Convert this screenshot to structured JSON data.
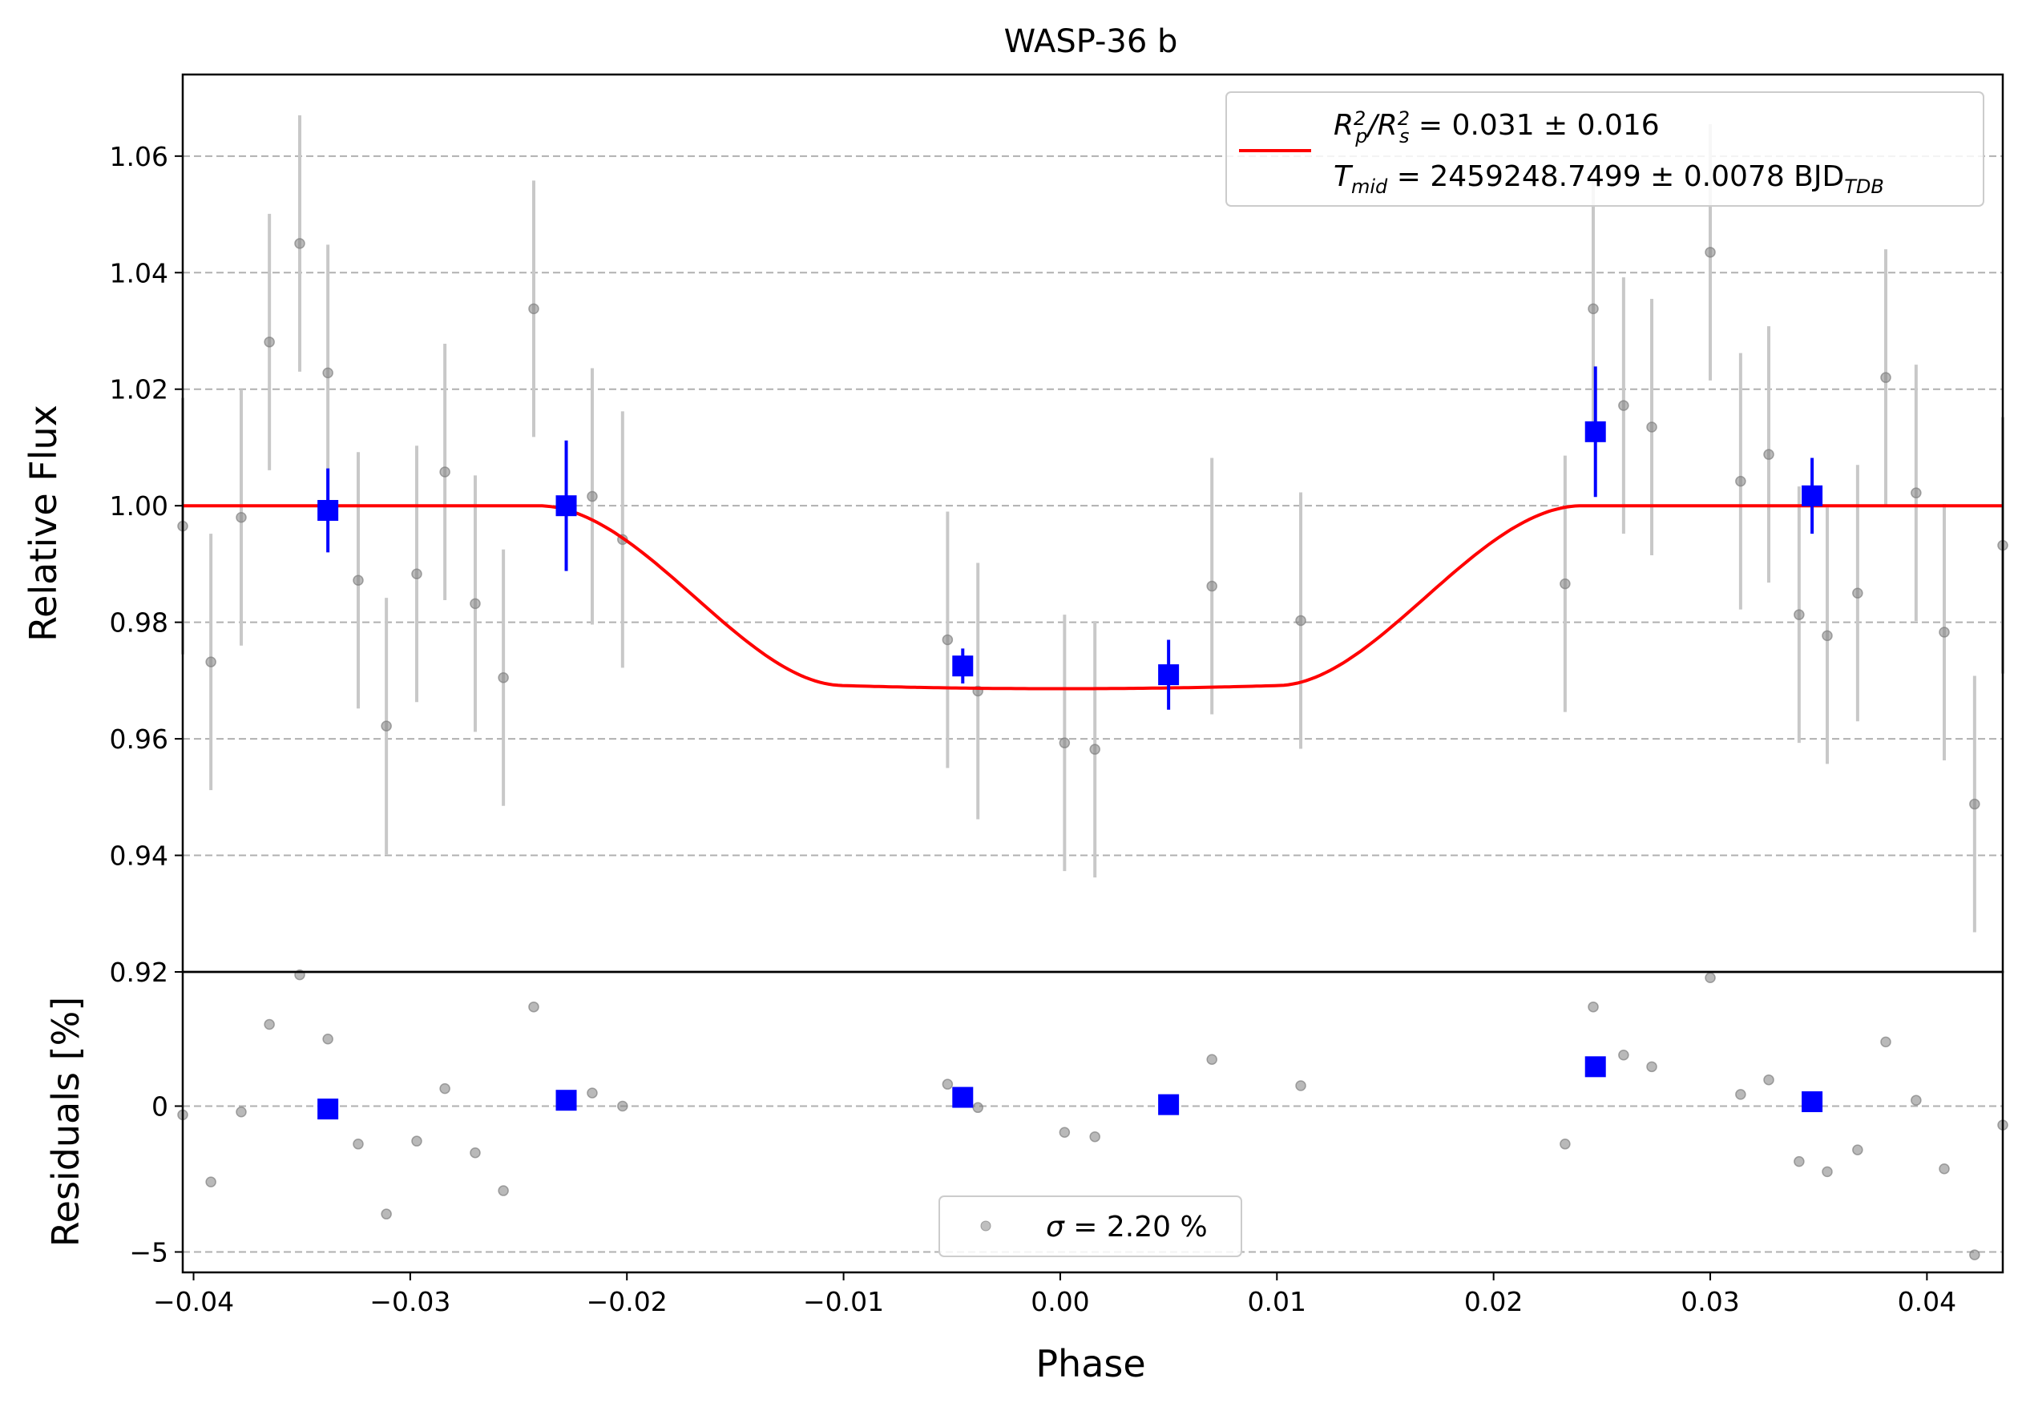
{
  "chart_data": [
    {
      "type": "scatter",
      "title": "WASP-36 b",
      "xlabel": "",
      "ylabel": "Relative Flux",
      "xlim": [
        -0.0405,
        0.0435
      ],
      "ylim": [
        0.92,
        1.074
      ],
      "yticks": [
        0.92,
        0.94,
        0.96,
        0.98,
        1.0,
        1.02,
        1.04,
        1.06
      ],
      "ytick_labels": [
        "0.92",
        "0.94",
        "0.96",
        "0.98",
        "1.00",
        "1.02",
        "1.04",
        "1.06"
      ],
      "grid": "horizontal dashed",
      "legend_position": "top-right",
      "legend": {
        "rp_lhs": "R",
        "rp_sup": "2",
        "rp_sub1": "p",
        "rp_slash": "/R",
        "rp_sub2": "s",
        "rp_rhs": " = 0.031 ± 0.016",
        "tmid_lhs": "T",
        "tmid_sub": "mid",
        "tmid_rhs": " = 2459248.7499 ± 0.0078 BJD",
        "tmid_unit_sub": "TDB"
      },
      "series": [
        {
          "style": "grey points with error bars",
          "color": "#808080",
          "points": [
            {
              "x": -0.0405,
              "y": 0.9965,
              "err": 0.022
            },
            {
              "x": -0.0392,
              "y": 0.9732,
              "err": 0.022
            },
            {
              "x": -0.0378,
              "y": 0.998,
              "err": 0.022
            },
            {
              "x": -0.0365,
              "y": 1.0281,
              "err": 0.022
            },
            {
              "x": -0.0351,
              "y": 1.045,
              "err": 0.022
            },
            {
              "x": -0.0338,
              "y": 1.0228,
              "err": 0.022
            },
            {
              "x": -0.0324,
              "y": 0.9872,
              "err": 0.022
            },
            {
              "x": -0.0311,
              "y": 0.9622,
              "err": 0.022
            },
            {
              "x": -0.0297,
              "y": 0.9883,
              "err": 0.022
            },
            {
              "x": -0.0284,
              "y": 1.0058,
              "err": 0.022
            },
            {
              "x": -0.027,
              "y": 0.9832,
              "err": 0.022
            },
            {
              "x": -0.0257,
              "y": 0.9705,
              "err": 0.022
            },
            {
              "x": -0.0243,
              "y": 1.0338,
              "err": 0.022
            },
            {
              "x": -0.0216,
              "y": 1.0016,
              "err": 0.022
            },
            {
              "x": -0.0202,
              "y": 0.9942,
              "err": 0.022
            },
            {
              "x": -0.0052,
              "y": 0.977,
              "err": 0.022
            },
            {
              "x": -0.0038,
              "y": 0.9682,
              "err": 0.022
            },
            {
              "x": 0.0002,
              "y": 0.9593,
              "err": 0.022
            },
            {
              "x": 0.0016,
              "y": 0.9582,
              "err": 0.022
            },
            {
              "x": 0.007,
              "y": 0.9862,
              "err": 0.022
            },
            {
              "x": 0.0111,
              "y": 0.9803,
              "err": 0.022
            },
            {
              "x": 0.0233,
              "y": 0.9866,
              "err": 0.022
            },
            {
              "x": 0.0246,
              "y": 1.0338,
              "err": 0.022
            },
            {
              "x": 0.026,
              "y": 1.0172,
              "err": 0.022
            },
            {
              "x": 0.0273,
              "y": 1.0135,
              "err": 0.022
            },
            {
              "x": 0.03,
              "y": 1.0435,
              "err": 0.022
            },
            {
              "x": 0.0314,
              "y": 1.0042,
              "err": 0.022
            },
            {
              "x": 0.0327,
              "y": 1.0088,
              "err": 0.022
            },
            {
              "x": 0.0341,
              "y": 0.9813,
              "err": 0.022
            },
            {
              "x": 0.0354,
              "y": 0.9777,
              "err": 0.022
            },
            {
              "x": 0.0368,
              "y": 0.985,
              "err": 0.022
            },
            {
              "x": 0.0381,
              "y": 1.022,
              "err": 0.022
            },
            {
              "x": 0.0395,
              "y": 1.0022,
              "err": 0.022
            },
            {
              "x": 0.0408,
              "y": 0.9783,
              "err": 0.022
            },
            {
              "x": 0.0422,
              "y": 0.9488,
              "err": 0.022
            },
            {
              "x": 0.0435,
              "y": 0.9932,
              "err": 0.022
            }
          ]
        },
        {
          "style": "blue binned squares with error bars",
          "color": "#0000ff",
          "points": [
            {
              "x": -0.0338,
              "y": 0.9992,
              "err": 0.0072
            },
            {
              "x": -0.0228,
              "y": 1.0,
              "err": 0.0112
            },
            {
              "x": -0.0045,
              "y": 0.9725,
              "err": 0.003
            },
            {
              "x": 0.005,
              "y": 0.971,
              "err": 0.006
            },
            {
              "x": 0.0247,
              "y": 1.0127,
              "err": 0.0112
            },
            {
              "x": 0.0347,
              "y": 1.0017,
              "err": 0.0065
            }
          ]
        },
        {
          "style": "model line",
          "color": "#ff0000",
          "model": {
            "depth": 0.0314,
            "t1": -0.0241,
            "t2": -0.0101,
            "t3": 0.0101,
            "t4": 0.0241
          }
        }
      ]
    },
    {
      "type": "scatter",
      "title": "",
      "xlabel": "Phase",
      "ylabel": "Residuals [%]",
      "xlim": [
        -0.0405,
        0.0435
      ],
      "ylim": [
        -5.7,
        4.6
      ],
      "xticks": [
        -0.04,
        -0.03,
        -0.02,
        -0.01,
        0.0,
        0.01,
        0.02,
        0.03,
        0.04
      ],
      "xtick_labels": [
        "−0.04",
        "−0.03",
        "−0.02",
        "−0.01",
        "0.00",
        "0.01",
        "0.02",
        "0.03",
        "0.04"
      ],
      "yticks": [
        0,
        -5
      ],
      "ytick_labels": [
        "0",
        "−5"
      ],
      "grid": "horizontal dashed",
      "legend_position": "bottom-center",
      "legend": {
        "sigma_symbol": "σ",
        "sigma_text": " = 2.20 %"
      },
      "series": [
        {
          "style": "grey points",
          "color": "#808080",
          "points": [
            {
              "x": -0.0405,
              "y": -0.3
            },
            {
              "x": -0.0392,
              "y": -2.6
            },
            {
              "x": -0.0378,
              "y": -0.2
            },
            {
              "x": -0.0365,
              "y": 2.8
            },
            {
              "x": -0.0351,
              "y": 4.5
            },
            {
              "x": -0.0338,
              "y": 2.3
            },
            {
              "x": -0.0324,
              "y": -1.3
            },
            {
              "x": -0.0311,
              "y": -3.7
            },
            {
              "x": -0.0297,
              "y": -1.2
            },
            {
              "x": -0.0284,
              "y": 0.6
            },
            {
              "x": -0.027,
              "y": -1.6
            },
            {
              "x": -0.0257,
              "y": -2.9
            },
            {
              "x": -0.0243,
              "y": 3.4
            },
            {
              "x": -0.0216,
              "y": 0.45
            },
            {
              "x": -0.0202,
              "y": 0.0
            },
            {
              "x": -0.0052,
              "y": 0.75
            },
            {
              "x": -0.0038,
              "y": -0.05
            },
            {
              "x": 0.0002,
              "y": -0.9
            },
            {
              "x": 0.0016,
              "y": -1.05
            },
            {
              "x": 0.007,
              "y": 1.6
            },
            {
              "x": 0.0111,
              "y": 0.7
            },
            {
              "x": 0.0233,
              "y": -1.3
            },
            {
              "x": 0.0246,
              "y": 3.4
            },
            {
              "x": 0.026,
              "y": 1.75
            },
            {
              "x": 0.0273,
              "y": 1.35
            },
            {
              "x": 0.03,
              "y": 4.4
            },
            {
              "x": 0.0314,
              "y": 0.4
            },
            {
              "x": 0.0327,
              "y": 0.9
            },
            {
              "x": 0.0341,
              "y": -1.9
            },
            {
              "x": 0.0354,
              "y": -2.25
            },
            {
              "x": 0.0368,
              "y": -1.5
            },
            {
              "x": 0.0381,
              "y": 2.2
            },
            {
              "x": 0.0395,
              "y": 0.2
            },
            {
              "x": 0.0408,
              "y": -2.15
            },
            {
              "x": 0.0422,
              "y": -5.1
            },
            {
              "x": 0.0435,
              "y": -0.65
            }
          ]
        },
        {
          "style": "blue binned squares",
          "color": "#0000ff",
          "points": [
            {
              "x": -0.0338,
              "y": -0.1
            },
            {
              "x": -0.0228,
              "y": 0.2
            },
            {
              "x": -0.0045,
              "y": 0.3
            },
            {
              "x": 0.005,
              "y": 0.05
            },
            {
              "x": 0.0247,
              "y": 1.35
            },
            {
              "x": 0.0347,
              "y": 0.15
            }
          ]
        }
      ]
    }
  ]
}
